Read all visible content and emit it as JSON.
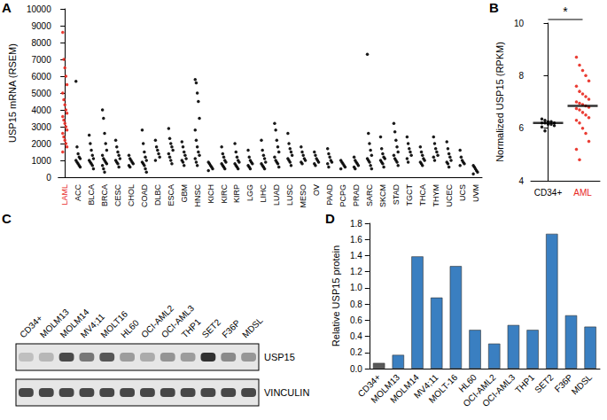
{
  "chart_data": [
    {
      "panel": "A",
      "type": "scatter",
      "ylabel": "USP15 mRNA (RSEM)",
      "grid": false,
      "ylim": [
        0,
        10000
      ],
      "yticks": [
        0,
        1000,
        2000,
        3000,
        4000,
        5000,
        6000,
        7000,
        8000,
        9000,
        10000
      ],
      "categories": [
        "LAML",
        "ACC",
        "BLCA",
        "BRCA",
        "CESC",
        "CHOL",
        "COAD",
        "DLBC",
        "ESCA",
        "GBM",
        "HNSC",
        "KICH",
        "KIRC",
        "KIRP",
        "LGG",
        "LIHC",
        "LUAD",
        "LUSC",
        "MESO",
        "OV",
        "PAAD",
        "PCPG",
        "PRAD",
        "SARC",
        "SKCM",
        "STAD",
        "TGCT",
        "THCA",
        "THYM",
        "UCEC",
        "UCS",
        "UVM"
      ],
      "colors": [
        "#e8281e",
        "#000000",
        "#000000",
        "#000000",
        "#000000",
        "#000000",
        "#000000",
        "#000000",
        "#000000",
        "#000000",
        "#000000",
        "#000000",
        "#000000",
        "#000000",
        "#000000",
        "#000000",
        "#000000",
        "#000000",
        "#000000",
        "#000000",
        "#000000",
        "#000000",
        "#000000",
        "#000000",
        "#000000",
        "#000000",
        "#000000",
        "#000000",
        "#000000",
        "#000000",
        "#000000",
        "#000000"
      ],
      "values": [
        [
          8600,
          7000,
          6500,
          6000,
          5500,
          5000,
          4600,
          4300,
          4000,
          3800,
          3600,
          3400,
          3200,
          3000,
          2800,
          2600,
          2400,
          2200,
          2000,
          1800,
          1500
        ],
        [
          5700,
          1800,
          1400,
          1200,
          1100,
          1000,
          900,
          800,
          700,
          600
        ],
        [
          2500,
          2000,
          1600,
          1300,
          1100,
          1000,
          900,
          800,
          700,
          500
        ],
        [
          4000,
          3500,
          2600,
          2000,
          1600,
          1300,
          1100,
          1000,
          900,
          800,
          700,
          500,
          300
        ],
        [
          2200,
          1800,
          1500,
          1300,
          1100,
          1000,
          900,
          800,
          600
        ],
        [
          1300,
          1100,
          1000,
          900,
          800,
          700,
          600
        ],
        [
          2800,
          2000,
          1500,
          1200,
          1000,
          900,
          800,
          700,
          500,
          300
        ],
        [
          2200,
          1800,
          1600,
          1400,
          1200,
          1000
        ],
        [
          2900,
          2300,
          2000,
          1800,
          1600,
          1400,
          1200,
          1000,
          800
        ],
        [
          2100,
          1800,
          1500,
          1300,
          1100,
          1000,
          900,
          700
        ],
        [
          5800,
          5600,
          5000,
          4500,
          3500,
          2800,
          2200,
          1800,
          1500,
          1300,
          1100,
          900,
          700
        ],
        [
          900,
          800,
          700,
          600,
          500,
          400
        ],
        [
          1800,
          1400,
          1200,
          1000,
          900,
          800,
          700,
          600,
          500
        ],
        [
          2000,
          1500,
          1200,
          1000,
          900,
          800,
          700,
          600,
          500
        ],
        [
          1600,
          1200,
          1000,
          900,
          800,
          700,
          600,
          500
        ],
        [
          2200,
          1600,
          1300,
          1100,
          900,
          800,
          700,
          600,
          500
        ],
        [
          3200,
          2800,
          2200,
          1800,
          1500,
          1200,
          1000,
          900,
          800,
          600
        ],
        [
          2600,
          2000,
          1700,
          1500,
          1300,
          1100,
          1000,
          900,
          700
        ],
        [
          1800,
          1500,
          1300,
          1100,
          1000,
          900,
          800
        ],
        [
          1500,
          1300,
          1100,
          1000,
          900,
          800,
          700
        ],
        [
          1700,
          1400,
          1200,
          1000,
          900,
          800,
          600
        ],
        [
          1000,
          900,
          800,
          700,
          600,
          500
        ],
        [
          1200,
          1000,
          900,
          800,
          700,
          600,
          500
        ],
        [
          7300,
          2600,
          2000,
          1600,
          1300,
          1100,
          1000,
          900,
          700,
          500
        ],
        [
          2400,
          1700,
          1400,
          1200,
          1100,
          1000,
          900,
          800,
          600
        ],
        [
          3200,
          2700,
          2200,
          1800,
          1500,
          1300,
          1100,
          1000,
          900,
          700
        ],
        [
          2400,
          2000,
          1700,
          1500,
          1300,
          1100,
          900
        ],
        [
          1800,
          1500,
          1300,
          1100,
          1000,
          900,
          800,
          700
        ],
        [
          2400,
          2000,
          1700,
          1500,
          1300,
          1200,
          1000
        ],
        [
          2100,
          1700,
          1400,
          1200,
          1000,
          900,
          800,
          600
        ],
        [
          1600,
          1200,
          1000,
          900,
          800,
          700
        ],
        [
          700,
          600,
          500,
          400,
          300,
          200
        ]
      ]
    },
    {
      "panel": "B",
      "type": "scatter",
      "ylabel": "Normalized USP15 (RPKM)",
      "grid": false,
      "ylim": [
        4,
        10
      ],
      "yticks": [
        4,
        6,
        8,
        10
      ],
      "categories": [
        "CD34+",
        "AML"
      ],
      "colors": [
        "#000000",
        "#e8281e"
      ],
      "values": [
        [
          6.35,
          6.3,
          6.25,
          6.25,
          6.2,
          6.2,
          6.2,
          6.15,
          6.15,
          6.1,
          6.05,
          5.9
        ],
        [
          8.7,
          8.4,
          8.2,
          8.0,
          7.8,
          7.6,
          7.4,
          7.3,
          7.2,
          7.1,
          7.0,
          6.95,
          6.9,
          6.85,
          6.8,
          6.75,
          6.7,
          6.6,
          6.5,
          6.4,
          6.3,
          6.2,
          6.0,
          5.8,
          5.5,
          5.2,
          4.8
        ]
      ],
      "medians": [
        6.2,
        6.85
      ],
      "annotation": "*"
    },
    {
      "panel": "D",
      "type": "bar",
      "ylabel": "Relative USP15 protein",
      "grid": false,
      "ylim": [
        0,
        1.8
      ],
      "yticks": [
        {
          "value": 0,
          "label": "0.0"
        },
        0.2,
        0.4,
        0.6,
        0.8,
        {
          "value": 1,
          "label": "1.0"
        },
        1.2,
        1.4,
        1.6,
        1.8
      ],
      "categories": [
        "CD34+",
        "MOLM13",
        "MOLM14",
        "MV4;11",
        "MOLT-16",
        "HL60",
        "OCI-AML2",
        "OCI-AML3",
        "THP1",
        "SET2",
        "F36P",
        "MDSL"
      ],
      "values": [
        0.07,
        0.17,
        1.39,
        0.88,
        1.27,
        0.48,
        0.31,
        0.54,
        0.48,
        1.67,
        0.66,
        0.52
      ],
      "colors": [
        "#595959",
        "#3a7fc1",
        "#3a7fc1",
        "#3a7fc1",
        "#3a7fc1",
        "#3a7fc1",
        "#3a7fc1",
        "#3a7fc1",
        "#3a7fc1",
        "#3a7fc1",
        "#3a7fc1",
        "#3a7fc1"
      ]
    }
  ],
  "blot": {
    "panel": "C",
    "lanes": [
      "CD34+",
      "MOLM13",
      "MOLM14",
      "MV4;11",
      "MOLT16",
      "HL60",
      "OCI-AML2",
      "OCI-AML3",
      "THP1",
      "SET2",
      "F36P",
      "MDSL"
    ],
    "proteins": [
      "USP15",
      "VINCULIN"
    ]
  }
}
